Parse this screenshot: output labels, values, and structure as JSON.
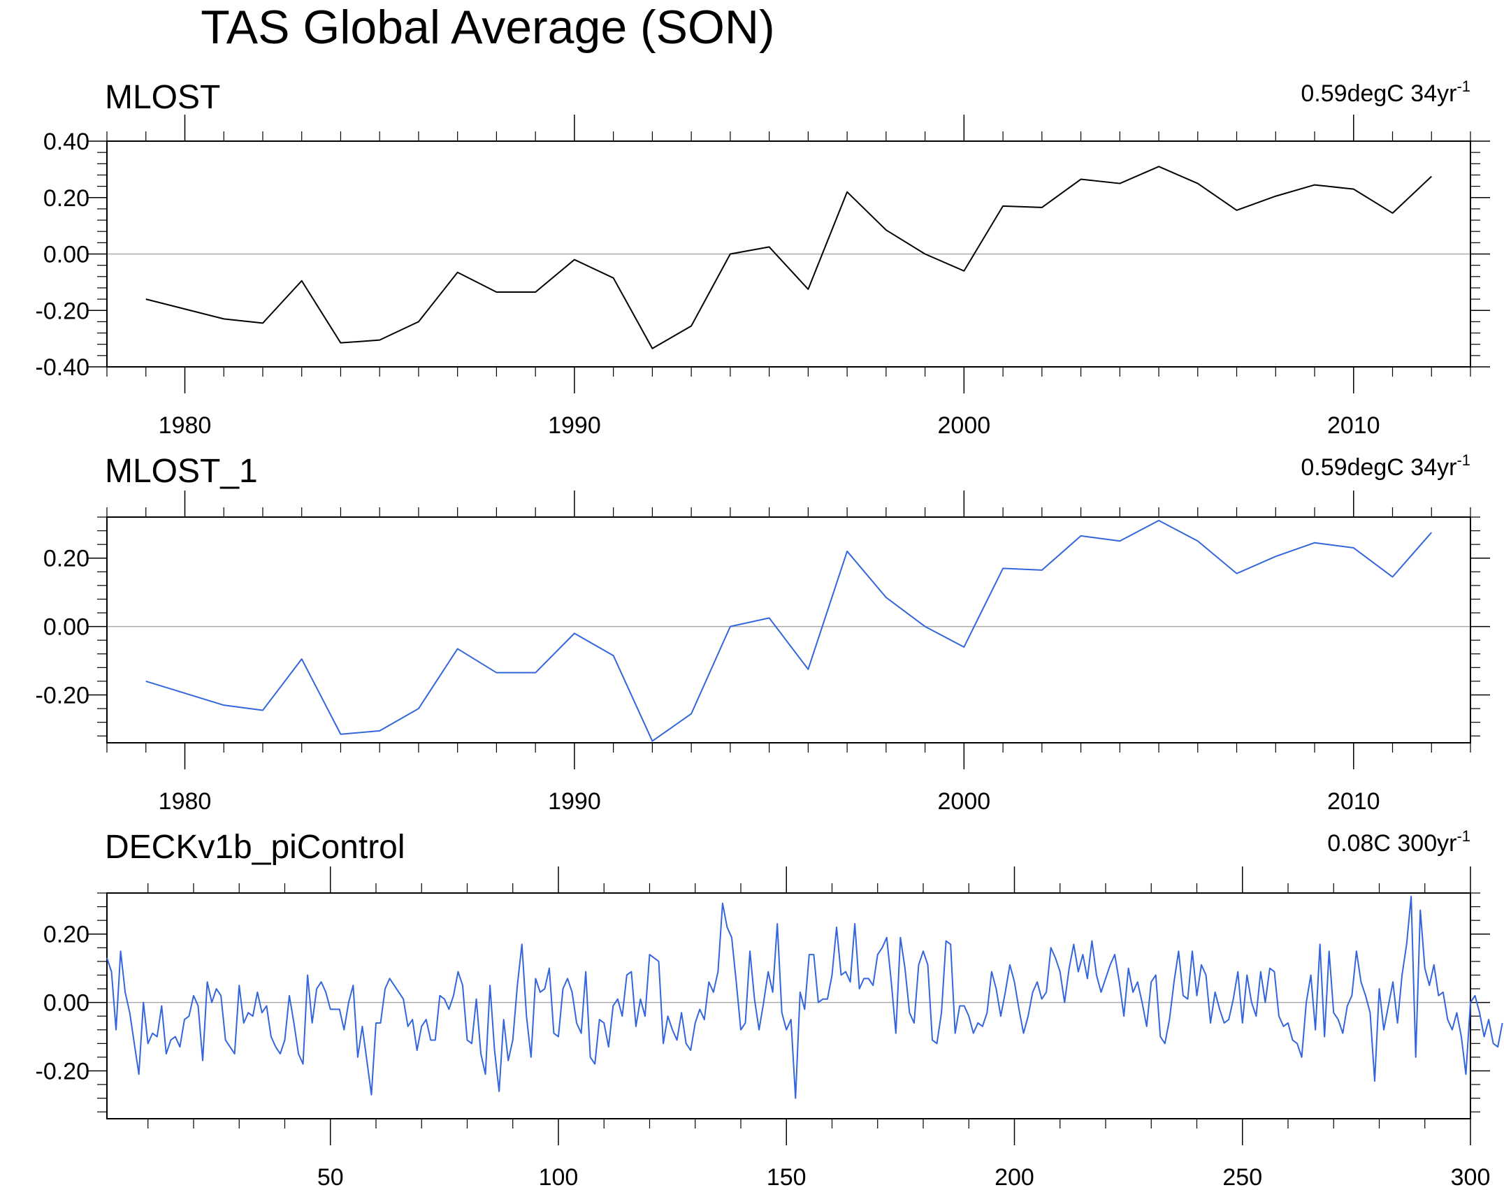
{
  "figure": {
    "title": "TAS Global Average (SON)",
    "colors": {
      "background": "#ffffff",
      "axis": "#000000",
      "zero_line": "#aaaaaa",
      "black_series": "#000000",
      "blue_series": "#3366dd"
    }
  },
  "chart_data": [
    {
      "type": "line",
      "title": "MLOST",
      "trend_label": "0.59degC 34yr",
      "trend_sup": "-1",
      "color": "black",
      "xlim": [
        1978,
        2013
      ],
      "ylim": [
        -0.4,
        0.4
      ],
      "xmajor": [
        1980,
        1990,
        2000,
        2010
      ],
      "xminor_step": 1,
      "xtick_labels": [
        "1980",
        "1990",
        "2000",
        "2010"
      ],
      "ymajor": [
        -0.4,
        -0.2,
        0.0,
        0.2,
        0.4
      ],
      "ytick_labels": [
        "-0.40",
        "-0.20",
        "0.00",
        "0.20",
        "0.40"
      ],
      "yminor_step": 0.04,
      "x": [
        1979,
        1980,
        1981,
        1982,
        1983,
        1984,
        1985,
        1986,
        1987,
        1988,
        1989,
        1990,
        1991,
        1992,
        1993,
        1994,
        1995,
        1996,
        1997,
        1998,
        1999,
        2000,
        2001,
        2002,
        2003,
        2004,
        2005,
        2006,
        2007,
        2008,
        2009,
        2010,
        2011,
        2012
      ],
      "y": [
        -0.16,
        -0.195,
        -0.23,
        -0.245,
        -0.095,
        -0.315,
        -0.305,
        -0.24,
        -0.065,
        -0.135,
        -0.135,
        -0.02,
        -0.085,
        -0.335,
        -0.255,
        0.0,
        0.025,
        -0.125,
        0.22,
        0.085,
        0.0,
        -0.06,
        0.17,
        0.165,
        0.265,
        0.25,
        0.31,
        0.25,
        0.155,
        0.205,
        0.245,
        0.23,
        0.145,
        0.275
      ]
    },
    {
      "type": "line",
      "title": "MLOST_1",
      "trend_label": "0.59degC 34yr",
      "trend_sup": "-1",
      "color": "blue",
      "xlim": [
        1978,
        2013
      ],
      "ylim": [
        -0.34,
        0.32
      ],
      "xmajor": [
        1980,
        1990,
        2000,
        2010
      ],
      "xminor_step": 1,
      "xtick_labels": [
        "1980",
        "1990",
        "2000",
        "2010"
      ],
      "ymajor": [
        -0.2,
        0.0,
        0.2
      ],
      "ytick_labels": [
        "-0.20",
        "0.00",
        "0.20"
      ],
      "yminor_step": 0.04,
      "x": [
        1979,
        1980,
        1981,
        1982,
        1983,
        1984,
        1985,
        1986,
        1987,
        1988,
        1989,
        1990,
        1991,
        1992,
        1993,
        1994,
        1995,
        1996,
        1997,
        1998,
        1999,
        2000,
        2001,
        2002,
        2003,
        2004,
        2005,
        2006,
        2007,
        2008,
        2009,
        2010,
        2011,
        2012
      ],
      "y": [
        -0.16,
        -0.195,
        -0.23,
        -0.245,
        -0.095,
        -0.315,
        -0.305,
        -0.24,
        -0.065,
        -0.135,
        -0.135,
        -0.02,
        -0.085,
        -0.335,
        -0.255,
        0.0,
        0.025,
        -0.125,
        0.22,
        0.085,
        0.0,
        -0.06,
        0.17,
        0.165,
        0.265,
        0.25,
        0.31,
        0.25,
        0.155,
        0.205,
        0.245,
        0.23,
        0.145,
        0.275
      ]
    },
    {
      "type": "line",
      "title": "DECKv1b_piControl",
      "trend_label": "0.08C 300yr",
      "trend_sup": "-1",
      "color": "blue",
      "xlim": [
        1,
        300
      ],
      "ylim": [
        -0.34,
        0.32
      ],
      "xmajor": [
        50,
        100,
        150,
        200,
        250,
        300
      ],
      "xminor_step": 10,
      "xtick_labels": [
        "50",
        "100",
        "150",
        "200",
        "250",
        "300"
      ],
      "ymajor": [
        -0.2,
        0.0,
        0.2
      ],
      "ytick_labels": [
        "-0.20",
        "0.00",
        "0.20"
      ],
      "yminor_step": 0.04,
      "x_start": 1,
      "y": [
        0.13,
        0.09,
        -0.08,
        0.15,
        0.03,
        -0.03,
        -0.12,
        -0.21,
        0.0,
        -0.12,
        -0.09,
        -0.1,
        -0.01,
        -0.15,
        -0.11,
        -0.1,
        -0.13,
        -0.05,
        -0.04,
        0.02,
        -0.01,
        -0.17,
        0.06,
        0.0,
        0.04,
        0.02,
        -0.11,
        -0.13,
        -0.15,
        0.05,
        -0.06,
        -0.03,
        -0.04,
        0.03,
        -0.03,
        -0.01,
        -0.1,
        -0.13,
        -0.15,
        -0.11,
        0.02,
        -0.06,
        -0.15,
        -0.18,
        0.08,
        -0.06,
        0.04,
        0.06,
        0.03,
        -0.02,
        -0.02,
        -0.02,
        -0.08,
        0.0,
        0.05,
        -0.16,
        -0.07,
        -0.17,
        -0.27,
        -0.06,
        -0.06,
        0.04,
        0.07,
        0.05,
        0.03,
        0.01,
        -0.07,
        -0.05,
        -0.14,
        -0.07,
        -0.05,
        -0.11,
        -0.11,
        0.02,
        0.01,
        -0.02,
        0.02,
        0.09,
        0.05,
        -0.11,
        -0.12,
        0.01,
        -0.15,
        -0.21,
        0.05,
        -0.14,
        -0.26,
        -0.05,
        -0.17,
        -0.11,
        0.05,
        0.17,
        -0.04,
        -0.16,
        0.07,
        0.03,
        0.04,
        0.1,
        -0.09,
        -0.1,
        0.04,
        0.07,
        0.03,
        -0.06,
        -0.09,
        0.09,
        -0.16,
        -0.18,
        -0.05,
        -0.06,
        -0.13,
        -0.01,
        0.01,
        -0.04,
        0.08,
        0.09,
        -0.07,
        0.01,
        -0.04,
        0.14,
        0.13,
        0.12,
        -0.12,
        -0.04,
        -0.08,
        -0.11,
        -0.03,
        -0.12,
        -0.14,
        -0.06,
        -0.02,
        -0.05,
        0.06,
        0.03,
        0.09,
        0.29,
        0.22,
        0.19,
        0.06,
        -0.08,
        -0.06,
        0.15,
        0.01,
        -0.08,
        0.0,
        0.09,
        0.03,
        0.23,
        -0.03,
        -0.08,
        -0.05,
        -0.28,
        0.03,
        -0.02,
        0.14,
        0.14,
        0.0,
        0.01,
        0.01,
        0.08,
        0.22,
        0.08,
        0.09,
        0.06,
        0.23,
        0.04,
        0.07,
        0.07,
        0.05,
        0.14,
        0.16,
        0.19,
        0.06,
        -0.09,
        0.19,
        0.1,
        -0.03,
        -0.06,
        0.11,
        0.15,
        0.11,
        -0.11,
        -0.12,
        -0.03,
        0.18,
        0.17,
        -0.09,
        -0.01,
        -0.01,
        -0.04,
        -0.09,
        -0.06,
        -0.07,
        -0.03,
        0.09,
        0.04,
        -0.04,
        0.03,
        0.11,
        0.06,
        -0.02,
        -0.09,
        -0.04,
        0.03,
        0.06,
        0.01,
        0.03,
        0.16,
        0.13,
        0.09,
        0.0,
        0.1,
        0.17,
        0.09,
        0.14,
        0.07,
        0.18,
        0.08,
        0.03,
        0.07,
        0.11,
        0.14,
        0.06,
        -0.04,
        0.1,
        0.03,
        0.06,
        0.0,
        -0.07,
        0.06,
        0.08,
        -0.1,
        -0.12,
        -0.05,
        0.06,
        0.15,
        0.02,
        0.01,
        0.15,
        0.02,
        0.11,
        0.08,
        -0.06,
        0.03,
        -0.02,
        -0.06,
        -0.05,
        0.01,
        0.09,
        -0.06,
        0.08,
        0.0,
        -0.04,
        0.09,
        0.0,
        0.1,
        0.09,
        -0.04,
        -0.07,
        -0.06,
        -0.11,
        -0.12,
        -0.16,
        0.0,
        0.08,
        -0.08,
        0.17,
        -0.1,
        0.15,
        -0.03,
        -0.05,
        -0.09,
        -0.01,
        0.02,
        0.15,
        0.06,
        0.02,
        -0.03,
        -0.23,
        0.04,
        -0.08,
        -0.01,
        0.06,
        -0.06,
        0.08,
        0.17,
        0.31,
        -0.16,
        0.27,
        0.1,
        0.05,
        0.11,
        0.02,
        0.03,
        -0.05,
        -0.08,
        -0.03,
        -0.1,
        -0.21,
        0.0,
        0.02,
        -0.03,
        -0.1,
        -0.05,
        -0.12,
        -0.13,
        -0.06
      ]
    }
  ]
}
